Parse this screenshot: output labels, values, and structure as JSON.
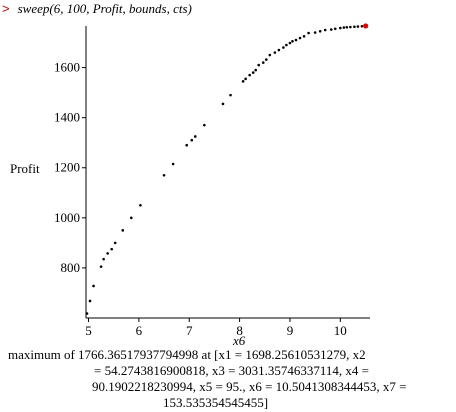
{
  "command": {
    "prompt": ">",
    "text": "sweep(6, 100, Profit, bounds, cts)"
  },
  "result": {
    "line1": "maximum of 1766.36517937794998 at [x1 = 1698.25610531279, x2",
    "line2": "= 54.2743816900818, x3 = 3031.35746337114, x4 =",
    "line3": "90.1902218230994, x5 = 95., x6 = 10.5041308344453, x7 =",
    "line4": "153.535354545455]"
  },
  "chart_data": {
    "type": "scatter",
    "xlabel": "x6",
    "ylabel": "Profit",
    "xlim": [
      4.95,
      10.55
    ],
    "ylim": [
      600,
      1790
    ],
    "x_ticks": [
      5,
      6,
      7,
      8,
      9,
      10
    ],
    "y_ticks": [
      800,
      1000,
      1200,
      1400,
      1600
    ],
    "grid": false,
    "point_color": "#000000",
    "highlight_color": "#dd0000",
    "series": [
      {
        "x": [
          4.97,
          5.03,
          5.1,
          5.25,
          5.3,
          5.38,
          5.46,
          5.53,
          5.68,
          5.85,
          6.03,
          6.5,
          6.68,
          6.95,
          7.05,
          7.12,
          7.3,
          7.67,
          7.82,
          8.07,
          8.12,
          8.2,
          8.27,
          8.32,
          8.38,
          8.47,
          8.53,
          8.6,
          8.7,
          8.78,
          8.87,
          8.93,
          9.0,
          9.05,
          9.12,
          9.2,
          9.28,
          9.37,
          9.5,
          9.6,
          9.7,
          9.82,
          9.9,
          10.0,
          10.07,
          10.13,
          10.2,
          10.28,
          10.35,
          10.43,
          10.5
        ],
        "y": [
          618,
          668,
          728,
          805,
          835,
          858,
          875,
          900,
          950,
          1000,
          1050,
          1170,
          1215,
          1290,
          1310,
          1325,
          1370,
          1455,
          1490,
          1545,
          1555,
          1570,
          1580,
          1590,
          1610,
          1620,
          1632,
          1650,
          1660,
          1670,
          1680,
          1690,
          1698,
          1705,
          1710,
          1718,
          1725,
          1738,
          1740,
          1745,
          1750,
          1752,
          1755,
          1758,
          1760,
          1761,
          1762,
          1763,
          1764,
          1765,
          1766
        ]
      }
    ],
    "highlight": {
      "x": 10.5041308344453,
      "y": 1766.36517937795
    }
  }
}
